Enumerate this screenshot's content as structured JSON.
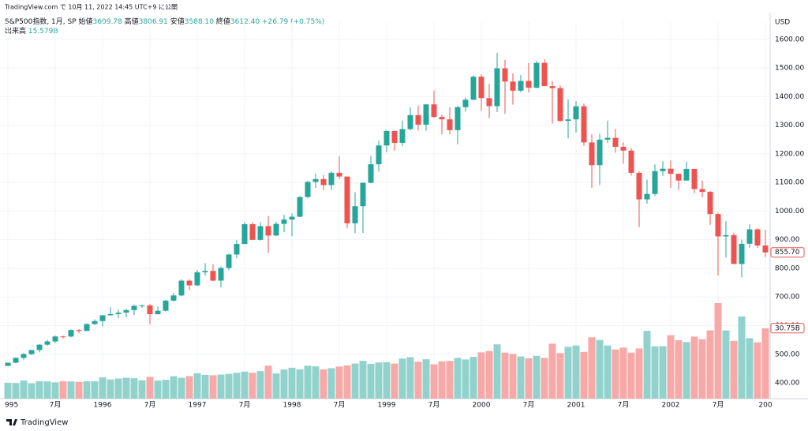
{
  "published": "TradingView.com で 10月 11, 2022 14:45 UTC+9 に公開",
  "header": {
    "symbol": "S&P500指数, 1月, SP",
    "ohlc": [
      {
        "label": "始値",
        "value": "3609.78"
      },
      {
        "label": "高値",
        "value": "3806.91"
      },
      {
        "label": "安値",
        "value": "3588.10"
      },
      {
        "label": "終値",
        "value": "3612.40"
      }
    ],
    "change": "+26.79 (+0.75%)",
    "volume_label": "出来高",
    "volume_value": "15.579B"
  },
  "footer": "TradingView",
  "chart_data": {
    "type": "candlestick",
    "currency": "USD",
    "up_color": "#26a69a",
    "down_color": "#ef5350",
    "up_volume_color": "#92d2cc",
    "down_volume_color": "#f7a9a7",
    "ylim": [
      345,
      1660
    ],
    "yticks": [
      {
        "value": 400,
        "label": "400.00"
      },
      {
        "value": 500,
        "label": "500.00"
      },
      {
        "value": 600,
        "label": "600.00"
      },
      {
        "value": 700,
        "label": "700.00"
      },
      {
        "value": 800,
        "label": "800.00"
      },
      {
        "value": 900,
        "label": "900.00"
      },
      {
        "value": 1000,
        "label": "1000.00"
      },
      {
        "value": 1100,
        "label": "1100.00"
      },
      {
        "value": 1200,
        "label": "1200.00"
      },
      {
        "value": 1300,
        "label": "1300.00"
      },
      {
        "value": 1400,
        "label": "1400.00"
      },
      {
        "value": 1500,
        "label": "1500.00"
      },
      {
        "value": 1600,
        "label": "1600.00"
      }
    ],
    "categories": [
      "995",
      null,
      null,
      null,
      null,
      null,
      "7月",
      null,
      null,
      null,
      null,
      null,
      "1996",
      null,
      null,
      null,
      null,
      null,
      "7月",
      null,
      null,
      null,
      null,
      null,
      "1997",
      null,
      null,
      null,
      null,
      null,
      "7月",
      null,
      null,
      null,
      null,
      null,
      "1998",
      null,
      null,
      null,
      null,
      null,
      "7月",
      null,
      null,
      null,
      null,
      null,
      "1999",
      null,
      null,
      null,
      null,
      null,
      "7月",
      null,
      null,
      null,
      null,
      null,
      "2000",
      null,
      null,
      null,
      null,
      null,
      "7月",
      null,
      null,
      null,
      null,
      null,
      "2001",
      null,
      null,
      null,
      null,
      null,
      "7月",
      null,
      null,
      null,
      null,
      null,
      "2002",
      null,
      null,
      null,
      null,
      null,
      "7月",
      null,
      null,
      null,
      null,
      null,
      "200"
    ],
    "open": [
      459.3,
      470.4,
      487.4,
      500.7,
      514.7,
      533.4,
      544.8,
      562.1,
      561.9,
      584.4,
      581.5,
      605.4,
      615.9,
      636,
      640.4,
      645.5,
      654.2,
      669.1,
      670.6,
      639.9,
      651.9,
      687.3,
      705.3,
      757,
      740.7,
      786.2,
      791,
      757.1,
      801.3,
      848.3,
      885.1,
      954.3,
      899.5,
      947.3,
      914.6,
      955.4,
      970.4,
      980.3,
      1049.3,
      1101.8,
      1111.8,
      1090.8,
      1133.8,
      1120.7,
      957.3,
      1017,
      1098.7,
      1163.6,
      1229.2,
      1279.6,
      1238.3,
      1286.4,
      1335.2,
      1301.8,
      1372.7,
      1328.7,
      1320.4,
      1282.7,
      1362.9,
      1388.9,
      1469.3,
      1394.5,
      1366.4,
      1498.6,
      1452.4,
      1420.6,
      1454.6,
      1430.8,
      1517.7,
      1436.5,
      1429.4,
      1314.9,
      1320.3,
      1366,
      1239.9,
      1160.3,
      1249.5,
      1255.8,
      1224.4,
      1211.2,
      1133.6,
      1040.9,
      1059.8,
      1139.5,
      1148.1,
      1130.2,
      1106.7,
      1147.4,
      1076.9,
      1067.1,
      989.8,
      911.6,
      916.1,
      815.3,
      885.8,
      936.3,
      879.8
    ],
    "high": [
      471.4,
      489.2,
      503.9,
      515.2,
      535,
      551.1,
      565,
      565,
      586.8,
      587.6,
      608,
      622,
      637,
      664,
      656,
      659,
      673,
      673,
      675,
      666,
      690,
      714,
      762,
      762,
      794,
      818,
      815,
      806,
      851,
      899,
      961,
      961,
      961,
      983,
      963,
      987,
      992,
      1051,
      1106,
      1130,
      1126,
      1139,
      1191,
      1121,
      1066,
      1100,
      1193,
      1245,
      1283,
      1282,
      1316,
      1363,
      1368,
      1373,
      1421,
      1337,
      1362,
      1367,
      1397,
      1474,
      1478,
      1444,
      1553,
      1528,
      1481,
      1475,
      1517,
      1525,
      1530,
      1454,
      1438,
      1390,
      1384,
      1376,
      1268,
      1270,
      1316,
      1287,
      1240,
      1220,
      1139,
      1110,
      1163,
      1174,
      1177,
      1131,
      1173,
      1147,
      1107,
      1070,
      994,
      965,
      925,
      900,
      954,
      940,
      935
    ],
    "low": [
      459.1,
      469,
      481,
      497,
      507,
      530,
      539,
      555,
      559,
      573,
      581,
      602,
      597,
      634,
      627,
      630,
      637,
      662,
      605,
      639,
      649,
      684,
      703,
      723,
      738,
      774,
      755,
      733,
      793,
      835,
      884,
      898,
      897,
      855,
      913,
      926,
      912,
      979,
      1045,
      1081,
      1074,
      1074,
      1112,
      940,
      923,
      924,
      1097,
      1138,
      1205,
      1211,
      1228,
      1282,
      1282,
      1281,
      1325,
      1268,
      1268,
      1233,
      1347,
      1387,
      1350,
      1325,
      1346,
      1340,
      1372,
      1415,
      1414,
      1429,
      1436,
      1306,
      1313,
      1254,
      1274,
      1228,
      1081,
      1091,
      1238,
      1204,
      1165,
      1124,
      944,
      1026,
      1054,
      1123,
      1081,
      1074,
      1106,
      1063,
      1048,
      952,
      775,
      837,
      815,
      768,
      872,
      871,
      840
    ],
    "close": [
      470.4,
      487.4,
      500.7,
      514.7,
      533.4,
      544.8,
      562.1,
      561.9,
      584.4,
      581.5,
      605.4,
      615.9,
      636,
      640.4,
      645.5,
      654.2,
      669.1,
      670.6,
      639.9,
      651.9,
      687.3,
      705.3,
      757,
      740.7,
      786.2,
      791,
      757.1,
      801.3,
      848.3,
      885.1,
      954.3,
      899.5,
      947.3,
      914.6,
      955.4,
      970.4,
      980.3,
      1049.3,
      1101.8,
      1111.8,
      1090.8,
      1133.8,
      1120.7,
      957.3,
      1017,
      1098.7,
      1163.6,
      1229.2,
      1279.6,
      1238.3,
      1286.4,
      1335.2,
      1301.8,
      1372.7,
      1328.7,
      1320.4,
      1282.7,
      1362.9,
      1388.9,
      1469.3,
      1394.5,
      1366.4,
      1498.6,
      1452.4,
      1420.6,
      1454.6,
      1430.8,
      1517.7,
      1436.5,
      1429.4,
      1314.9,
      1320.3,
      1366,
      1239.9,
      1160.3,
      1249.5,
      1255.8,
      1224.4,
      1211.2,
      1133.6,
      1040.9,
      1059.8,
      1139.5,
      1148.1,
      1130.2,
      1106.7,
      1147.4,
      1076.9,
      1067.1,
      989.8,
      911.6,
      916.1,
      815.3,
      885.8,
      936.3,
      879.8,
      855.7
    ],
    "volume": [
      6.9,
      6.8,
      7.9,
      6.7,
      7.6,
      7.5,
      7.1,
      7.6,
      7.5,
      7.3,
      7.6,
      7.6,
      9.3,
      8.4,
      8.8,
      9.1,
      8.9,
      8,
      9.5,
      7.9,
      8.2,
      9.8,
      9.1,
      9.8,
      11.1,
      10.4,
      10.2,
      10.5,
      10.8,
      11.3,
      11.8,
      11.3,
      12,
      14.4,
      11,
      12.7,
      13.5,
      12.8,
      14.4,
      14.1,
      12.8,
      13.3,
      14,
      14.5,
      15.3,
      16.5,
      15.2,
      15.8,
      15.9,
      15.3,
      17.5,
      18.1,
      16.1,
      17.2,
      15,
      16.3,
      16.5,
      17.8,
      17.1,
      18.2,
      20.2,
      20.8,
      23.7,
      20.1,
      19.5,
      18.4,
      17.6,
      18.7,
      17.8,
      24,
      19.9,
      22.6,
      23.2,
      20.4,
      26.8,
      25.6,
      23.2,
      21.5,
      22.3,
      20.1,
      21.9,
      29.6,
      22.8,
      22.9,
      27.7,
      25.5,
      24.7,
      27.1,
      25.9,
      29.8,
      41.7,
      29.8,
      25.2,
      35.9,
      26.4,
      24.6,
      30.75
    ],
    "last_close_label": "855.70",
    "last_volume_label": "30.75B"
  }
}
